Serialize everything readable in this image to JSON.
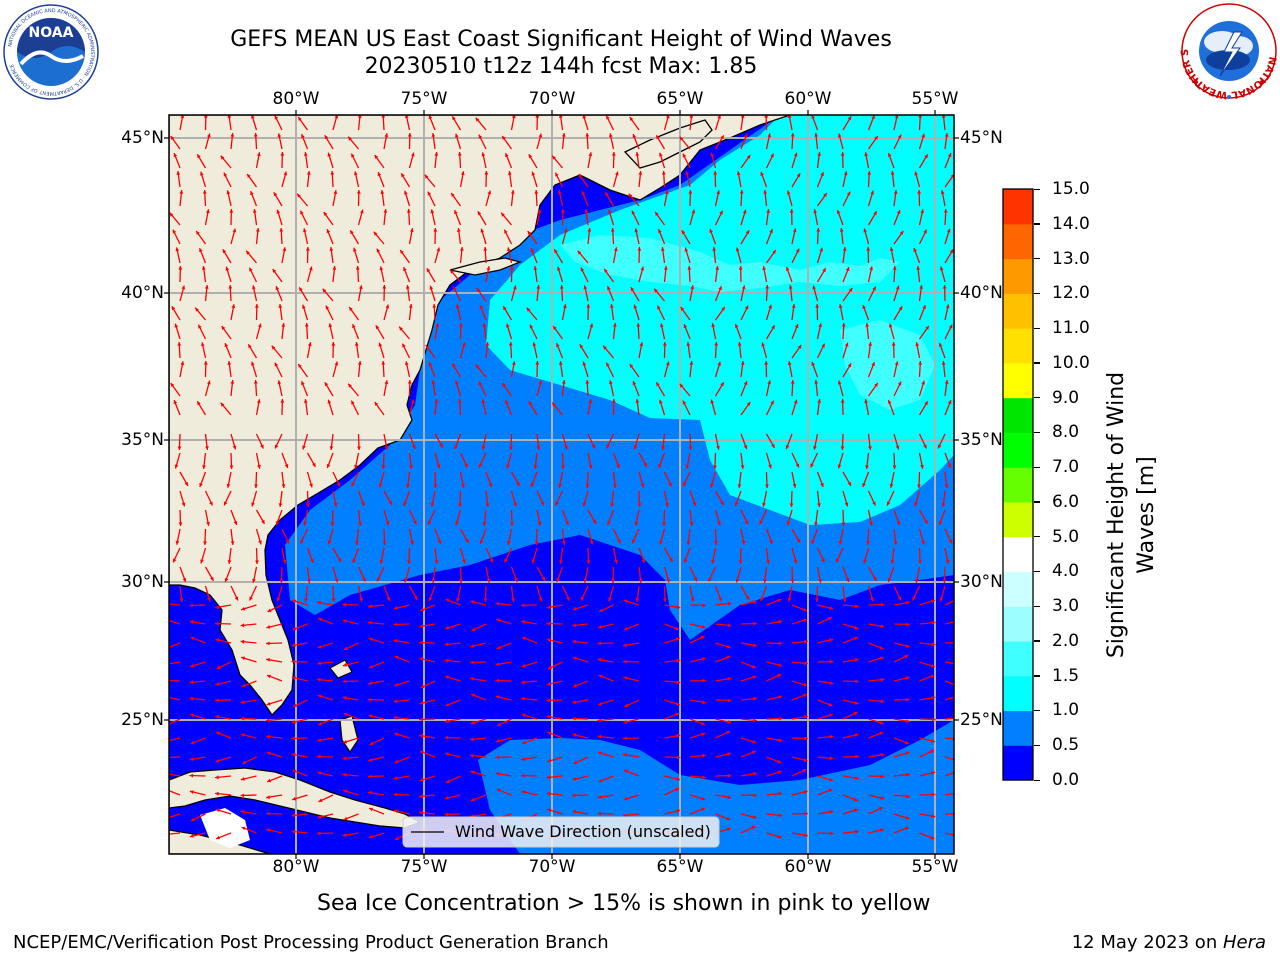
{
  "header": {
    "title_line1": "GEFS MEAN US East Coast Significant Height of Wind Waves",
    "title_line2": "20230510 t12z 144h fcst   Max: 1.85",
    "noaa_logo_text": "NOAA",
    "noaa_ring_text": "NATIONAL OCEANIC AND ATMOSPHERIC ADMINISTRATION · U.S. DEPARTMENT OF COMMERCE",
    "nws_ring_text": "NATIONAL WEATHER SERVICE"
  },
  "map": {
    "lon_labels": [
      "80°W",
      "75°W",
      "70°W",
      "65°W",
      "60°W",
      "55°W"
    ],
    "lat_labels": [
      "45°N",
      "40°N",
      "35°N",
      "30°N",
      "25°N"
    ],
    "legend_label": "Wind Wave Direction (unscaled)",
    "colors": {
      "land": "#efecdc",
      "coast": "#000000",
      "arrow": "#ff0000",
      "grid": "#b0b0b0"
    }
  },
  "colorbar": {
    "label": "Significant Height of Wind Waves [m]",
    "ticks": [
      "15.0",
      "14.0",
      "13.0",
      "12.0",
      "11.0",
      "10.0",
      "9.0",
      "8.0",
      "7.0",
      "6.0",
      "5.0",
      "4.0",
      "3.0",
      "2.0",
      "1.5",
      "1.0",
      "0.5",
      "0.0"
    ],
    "colors": [
      "#0000ff",
      "#0080ff",
      "#00ffff",
      "#40ffff",
      "#9cffff",
      "#ccffff",
      "#ffffff",
      "#ccff00",
      "#66ff00",
      "#00ff00",
      "#00e600",
      "#ffff00",
      "#ffe000",
      "#ffc000",
      "#ff9900",
      "#ff6600",
      "#ff3300",
      "#ff0000"
    ]
  },
  "footer": {
    "sea_ice_note": "Sea Ice Concentration > 15% is shown in pink to yellow",
    "branch": "NCEP/EMC/Verification Post Processing Product Generation Branch",
    "date_prefix": "12 May 2023 on ",
    "machine": "Hera"
  }
}
